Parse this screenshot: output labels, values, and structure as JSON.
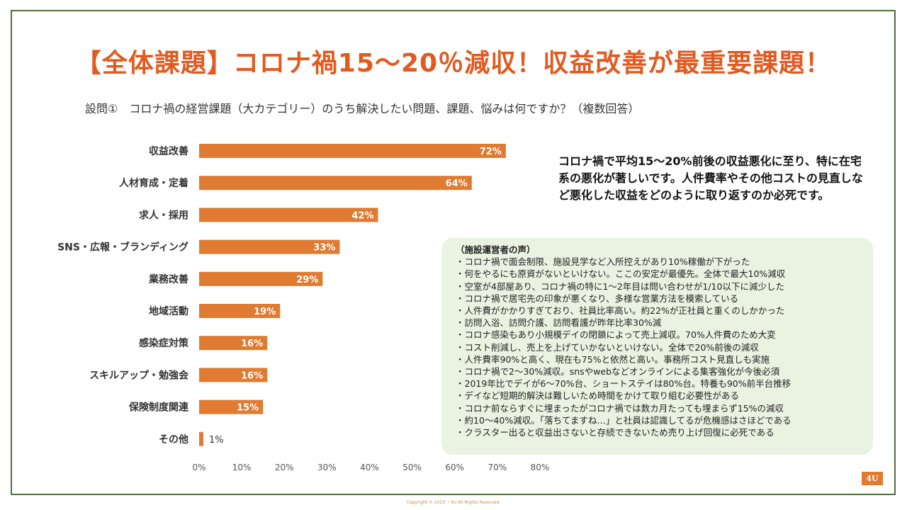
{
  "title": "【全体課題】コロナ禍15～20％減収！収益改善が最重要課題！",
  "question": "設問①　コロナ禍の経営課題（大カテゴリー）のうち解決したい問題、課題、悩みは何ですか？（複数回答）",
  "callout": "コロナ禍で平均15～20%前後の収益悪化に至り、特に在宅系の悪化が著しいです。人件費率やその他コストの見直しなど悪化した収益をどのように取り返すのか必死です。",
  "voices": {
    "title": "（施設運営者の声）",
    "items": [
      "コロナ禍で面会制限、施設見学など入所控えがあり10%稼働が下がった",
      "何をやるにも原資がないといけない。ここの安定が最優先。全体で最大10%減収",
      "空室が4部屋あり、コロナ禍の特に1～2年目は問い合わせが1/10以下に減少した",
      "コロナ禍で居宅先の印象が悪くなり、多様な営業方法を模索している",
      "人件費がかかりすぎており、社員比率高い。約22%が正社員と重くのしかかった",
      "訪問入浴、訪問介護、訪問看護が昨年比率30%減",
      "コロナ感染もあり小規模デイの閉鎖によって売上減収。70%人件費のため大変",
      "コスト削減し、売上を上げていかないといけない。全体で20%前後の減収",
      "人件費率90%と高く、現在も75%と依然と高い。事務所コスト見直しも実施",
      "コロナ禍で2～30%減収。snsやwebなどオンラインによる集客強化が今後必須",
      "2019年比でデイが6～70%台、ショートステイは80%台。特養も90%前半台推移",
      "デイなど短期的解決は難しいため時間をかけて取り組む必要性がある",
      "コロナ前ならすぐに埋まったがコロナ禍では数カ月たっても埋まらず15%の減収",
      "約10～40%減収。「落ちてますね…」と社員は認識してるが危機感はさほどである",
      "クラスター出ると収益出さないと存続できないため売り上げ回復に必死である"
    ]
  },
  "chart_data": {
    "type": "bar",
    "orientation": "horizontal",
    "categories": [
      "収益改善",
      "人材育成・定着",
      "求人・採用",
      "SNS・広報・ブランディング",
      "業務改善",
      "地域活動",
      "感染症対策",
      "スキルアップ・勉強会",
      "保険制度関連",
      "その他"
    ],
    "values": [
      72,
      64,
      42,
      33,
      29,
      19,
      16,
      16,
      15,
      1
    ],
    "data_labels": [
      "72%",
      "64%",
      "42%",
      "33%",
      "29%",
      "19%",
      "16%",
      "16%",
      "15%",
      "1%"
    ],
    "xlim": [
      0,
      80
    ],
    "ticks": [
      0,
      10,
      20,
      30,
      40,
      50,
      60,
      70,
      80
    ],
    "tick_labels": [
      "0%",
      "10%",
      "20%",
      "30%",
      "40%",
      "50%",
      "60%",
      "70%",
      "80%"
    ],
    "bar_color": "#e07b31",
    "grid": false
  },
  "page_number": "4U",
  "copyright": "Copyright © 2023 ・4U All Rights Reserved.",
  "colors": {
    "accent": "#e15a1f",
    "frame": "#4f6f3a",
    "voices_bg": "#eaf3e2"
  }
}
